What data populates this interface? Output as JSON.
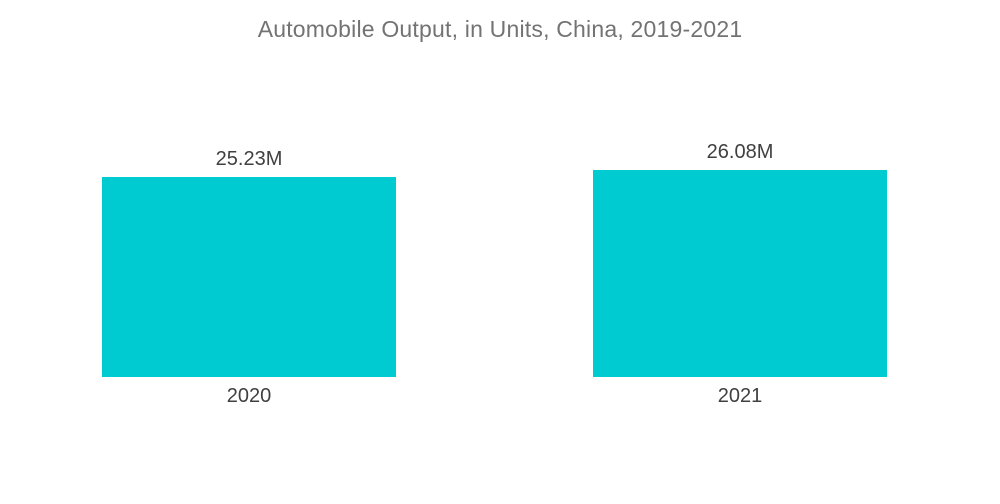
{
  "title": "Automobile Output, in Units, China, 2019-2021",
  "colors": {
    "bar": "#00CBD1",
    "title_text": "#737373",
    "label_text": "#404040",
    "background": "#FFFFFF"
  },
  "chart_data": {
    "type": "bar",
    "title": "Automobile Output, in Units, China, 2019-2021",
    "categories": [
      "2020",
      "2021"
    ],
    "values": [
      25.23,
      26.08
    ],
    "value_labels": [
      "25.23M",
      "26.08M"
    ],
    "xlabel": "",
    "ylabel": "",
    "ylim": [
      0,
      26.08
    ],
    "grid": false,
    "legend": false,
    "axes_visible": false
  }
}
